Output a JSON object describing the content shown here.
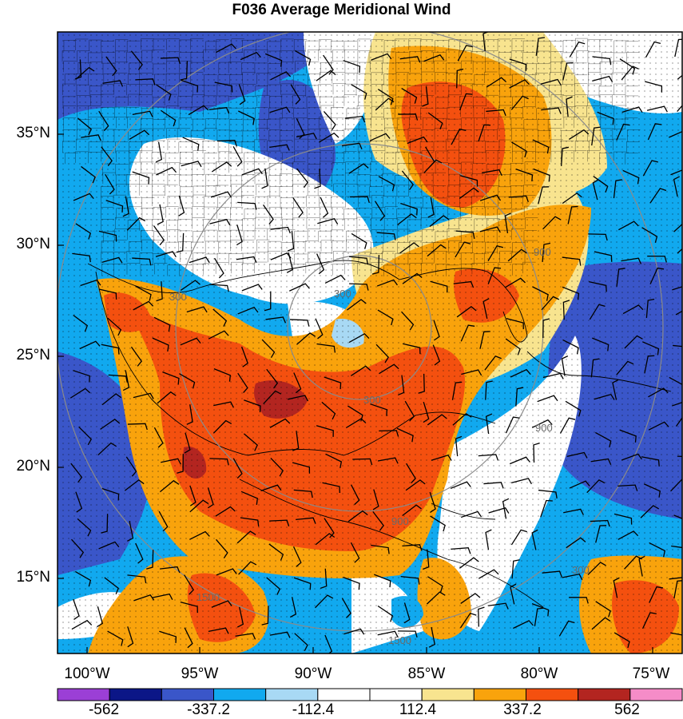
{
  "title": "F036 Average Meridional Wind",
  "y_labels": [
    "35°N",
    "30°N",
    "25°N",
    "20°N",
    "15°N"
  ],
  "x_labels": [
    "100°W",
    "95°W",
    "90°W",
    "85°W",
    "80°W",
    "75°W"
  ],
  "contour_labels": [
    "300",
    "300",
    "300",
    "900",
    "900",
    "900",
    "1500",
    "1500",
    "300"
  ],
  "colorbar": {
    "colors": [
      "#9b3fd6",
      "#0b1687",
      "#3a56c9",
      "#11a9ef",
      "#a8d9f4",
      "#ffffff",
      "#ffffff",
      "#f8e48f",
      "#f9a30c",
      "#f4500f",
      "#b32520",
      "#f58cc8"
    ],
    "labels": [
      "-562",
      "-337.2",
      "-112.4",
      "112.4",
      "337.2",
      "562"
    ]
  },
  "palette": {
    "deep_blue": "#0b1687",
    "blue": "#3a56c9",
    "cyan": "#11a9ef",
    "light_blue": "#a8d9f4",
    "white": "#ffffff",
    "light_yellow": "#f8e48f",
    "orange": "#f9a30c",
    "red_orange": "#f4500f",
    "dark_red": "#b32520"
  }
}
